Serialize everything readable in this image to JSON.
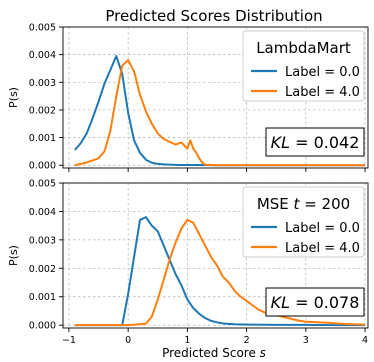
{
  "figure_title": "Predicted Scores Distribution",
  "xlabel_prefix": "Predicted Score ",
  "xlabel_var": "s",
  "colors": {
    "label_0": "#1f77b4",
    "label_4": "#ff7f0e"
  },
  "chart_data": [
    {
      "type": "line",
      "legend_title": "LambdaMart",
      "ylabel": "P(s)",
      "xlim": [
        -1.1,
        4.05
      ],
      "ylim": [
        -0.0001,
        0.005
      ],
      "xticks": [
        -1,
        0,
        1,
        2,
        3,
        4
      ],
      "yticks": [
        0.0,
        0.001,
        0.002,
        0.003,
        0.004,
        0.005
      ],
      "ytick_labels": [
        "0.000",
        "0.001",
        "0.002",
        "0.003",
        "0.004",
        "0.005"
      ],
      "xtick_labels": [
        "−1",
        "0",
        "1",
        "2",
        "3",
        "4"
      ],
      "legend_position": "upper right",
      "kl_text": "= 0.042",
      "series": [
        {
          "name": "Label = 0.0",
          "color": "#1f77b4",
          "x": [
            -0.9,
            -0.8,
            -0.7,
            -0.6,
            -0.5,
            -0.4,
            -0.3,
            -0.2,
            -0.1,
            0.0,
            0.1,
            0.2,
            0.3,
            0.4,
            0.5,
            0.6,
            0.7,
            0.8,
            0.9,
            1.0,
            1.2,
            1.5,
            2.0,
            2.5,
            3.0,
            3.5,
            4.0
          ],
          "y": [
            0.00055,
            0.0008,
            0.00115,
            0.0017,
            0.0023,
            0.00295,
            0.00345,
            0.00395,
            0.0033,
            0.0019,
            0.0009,
            0.00045,
            0.0002,
            9e-05,
            5e-05,
            3e-05,
            2e-05,
            1.5e-05,
            1e-05,
            1e-05,
            1e-05,
            0.0,
            0.0,
            0.0,
            0.0,
            0.0,
            0.0
          ]
        },
        {
          "name": "Label = 4.0",
          "color": "#ff7f0e",
          "x": [
            -0.9,
            -0.7,
            -0.5,
            -0.4,
            -0.3,
            -0.2,
            -0.1,
            0.0,
            0.1,
            0.2,
            0.3,
            0.4,
            0.5,
            0.6,
            0.7,
            0.8,
            0.9,
            1.0,
            1.05,
            1.1,
            1.15,
            1.2,
            1.25,
            1.3,
            1.5,
            2.0,
            2.5,
            3.0,
            3.5,
            4.0
          ],
          "y": [
            0.0,
            0.0001,
            0.00025,
            0.0005,
            0.00125,
            0.0025,
            0.0036,
            0.0038,
            0.0034,
            0.00255,
            0.00195,
            0.0015,
            0.00115,
            0.00095,
            0.00085,
            0.00075,
            0.00082,
            0.0006,
            0.0009,
            0.0006,
            0.00045,
            0.00025,
            0.0001,
            2e-05,
            0.0,
            0.0,
            0.0,
            0.0,
            0.0,
            0.0
          ]
        }
      ]
    },
    {
      "type": "line",
      "legend_title": "MSE ",
      "legend_title_var": "t",
      "legend_title_suffix": " = 200",
      "ylabel": "P(s)",
      "xlim": [
        -1.1,
        4.05
      ],
      "ylim": [
        -0.0001,
        0.005
      ],
      "xticks": [
        -1,
        0,
        1,
        2,
        3,
        4
      ],
      "yticks": [
        0.0,
        0.001,
        0.002,
        0.003,
        0.004,
        0.005
      ],
      "ytick_labels": [
        "0.000",
        "0.001",
        "0.002",
        "0.003",
        "0.004",
        "0.005"
      ],
      "xtick_labels": [
        "−1",
        "0",
        "1",
        "2",
        "3",
        "4"
      ],
      "legend_position": "upper right",
      "kl_text": "= 0.078",
      "series": [
        {
          "name": "Label = 0.0",
          "color": "#1f77b4",
          "x": [
            -0.9,
            -0.5,
            -0.1,
            0.0,
            0.1,
            0.2,
            0.3,
            0.4,
            0.5,
            0.6,
            0.7,
            0.8,
            0.9,
            1.0,
            1.1,
            1.2,
            1.3,
            1.4,
            1.5,
            1.6,
            1.8,
            2.0,
            2.5,
            3.0,
            3.5,
            4.0
          ],
          "y": [
            0.0,
            0.0,
            0.0,
            0.0011,
            0.0024,
            0.0037,
            0.0038,
            0.0035,
            0.0033,
            0.0028,
            0.0023,
            0.0018,
            0.0014,
            0.0009,
            0.0006,
            0.0004,
            0.00025,
            0.00015,
            0.0001,
            6e-05,
            3e-05,
            2e-05,
            1e-05,
            1e-05,
            0.0,
            0.0
          ]
        },
        {
          "name": "Label = 4.0",
          "color": "#ff7f0e",
          "x": [
            -0.9,
            -0.5,
            0.0,
            0.3,
            0.4,
            0.5,
            0.6,
            0.7,
            0.8,
            0.9,
            1.0,
            1.1,
            1.2,
            1.3,
            1.4,
            1.5,
            1.6,
            1.7,
            1.8,
            1.9,
            2.0,
            2.1,
            2.2,
            2.3,
            2.4,
            2.5,
            2.6,
            2.7,
            2.8,
            2.9,
            3.0,
            3.2,
            3.4,
            3.6,
            3.8,
            4.0
          ],
          "y": [
            0.0,
            0.0,
            0.0,
            5e-05,
            0.0003,
            0.0009,
            0.0016,
            0.0023,
            0.0029,
            0.0034,
            0.0037,
            0.0036,
            0.0032,
            0.0028,
            0.0024,
            0.0021,
            0.0017,
            0.0015,
            0.0012,
            0.001,
            0.00085,
            0.0007,
            0.00055,
            0.00045,
            0.0004,
            0.00035,
            0.0003,
            0.00025,
            0.0002,
            0.00015,
            0.00012,
            0.0001,
            8e-05,
            5e-05,
            3e-05,
            2e-05
          ]
        }
      ]
    }
  ]
}
